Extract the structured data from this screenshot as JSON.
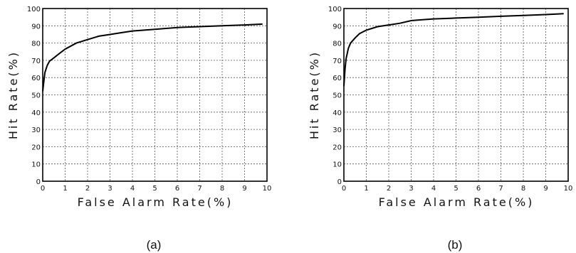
{
  "chart_data": [
    {
      "type": "line",
      "panel_label": "(a)",
      "xlabel": "False Alarm Rate(%)",
      "ylabel": "Hit Rate(%)",
      "xlim": [
        0,
        10
      ],
      "ylim": [
        0,
        100
      ],
      "x_ticks": [
        "0",
        "1",
        "2",
        "3",
        "4",
        "5",
        "6",
        "7",
        "8",
        "9",
        "10"
      ],
      "y_ticks": [
        "0",
        "10",
        "20",
        "30",
        "40",
        "50",
        "60",
        "70",
        "80",
        "90",
        "100"
      ],
      "grid": true,
      "series": [
        {
          "x": [
            0,
            0.05,
            0.1,
            0.2,
            0.3,
            0.5,
            0.7,
            1,
            1.5,
            2,
            2.5,
            3,
            3.5,
            4,
            5,
            6,
            7,
            8,
            9,
            9.8
          ],
          "y": [
            52,
            58,
            63,
            67,
            69.5,
            71.5,
            73.5,
            76.5,
            80,
            82,
            84,
            85,
            86,
            87,
            88,
            89,
            89.5,
            90,
            90.5,
            91
          ]
        }
      ]
    },
    {
      "type": "line",
      "panel_label": "(b)",
      "xlabel": "False Alarm Rate(%)",
      "ylabel": "Hit Rate(%)",
      "xlim": [
        0,
        10
      ],
      "ylim": [
        0,
        100
      ],
      "x_ticks": [
        "0",
        "1",
        "2",
        "3",
        "4",
        "5",
        "6",
        "7",
        "8",
        "9",
        "10"
      ],
      "y_ticks": [
        "0",
        "10",
        "20",
        "30",
        "40",
        "50",
        "60",
        "70",
        "80",
        "90",
        "100"
      ],
      "grid": true,
      "series": [
        {
          "x": [
            0,
            0.05,
            0.1,
            0.2,
            0.3,
            0.5,
            0.7,
            1,
            1.5,
            2,
            2.5,
            3,
            3.5,
            4,
            5,
            6,
            7,
            8,
            9,
            9.8
          ],
          "y": [
            55,
            65,
            71,
            77,
            80,
            83,
            85.5,
            87.5,
            89.5,
            90.5,
            91.5,
            93,
            93.5,
            94,
            94.5,
            95,
            95.5,
            96,
            96.5,
            97
          ]
        }
      ]
    }
  ]
}
